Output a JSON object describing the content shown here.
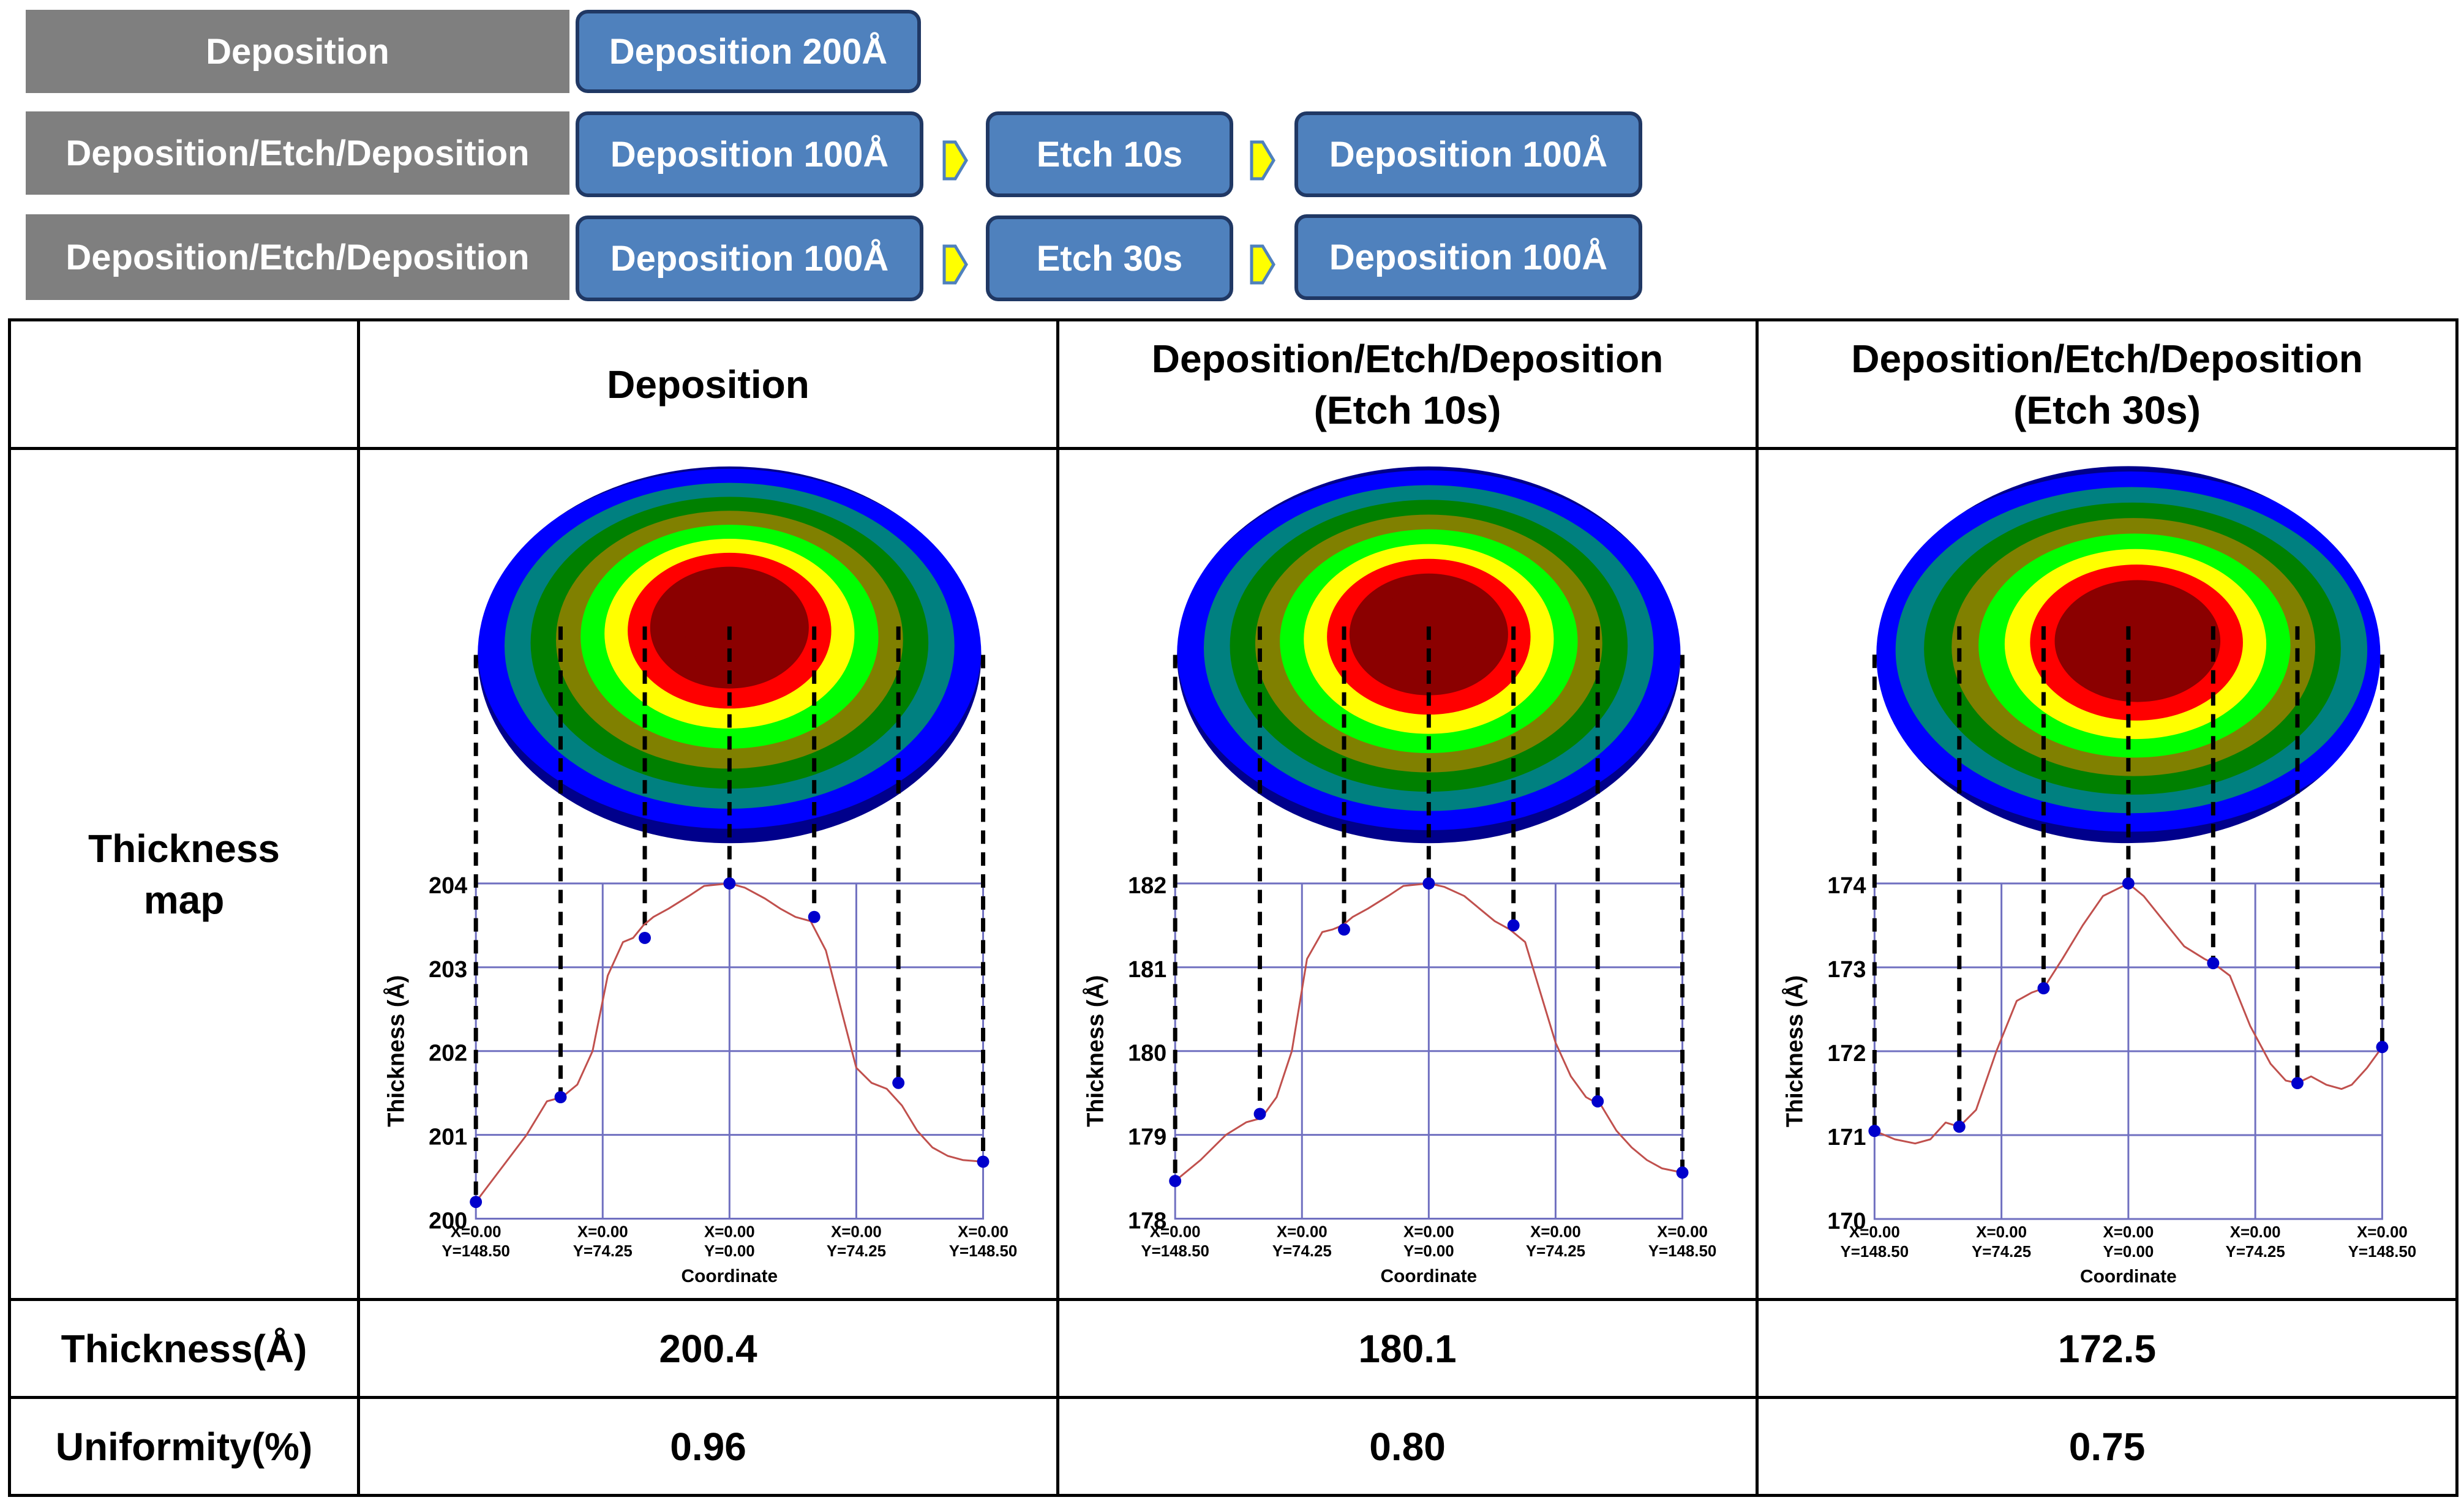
{
  "process": {
    "rows": [
      {
        "label": "Deposition",
        "steps": [
          "Deposition 200Å"
        ]
      },
      {
        "label": "Deposition/Etch/Deposition",
        "steps": [
          "Deposition 100Å",
          "Etch 10s",
          "Deposition 100Å"
        ]
      },
      {
        "label": "Deposition/Etch/Deposition",
        "steps": [
          "Deposition 100Å",
          "Etch 30s",
          "Deposition 100Å"
        ]
      }
    ]
  },
  "table": {
    "headers": [
      {
        "line1": "Deposition",
        "line2": ""
      },
      {
        "line1": "Deposition/Etch/Deposition",
        "line2": "(Etch 10s)"
      },
      {
        "line1": "Deposition/Etch/Deposition",
        "line2": "(Etch 30s)"
      }
    ],
    "map_label_1": "Thickness",
    "map_label_2": "map",
    "thickness_label": "Thickness(Å)",
    "uniformity_label": "Uniformity(%)",
    "thickness_values": [
      "200.4",
      "180.1",
      "172.5"
    ],
    "uniformity_values": [
      "0.96",
      "0.80",
      "0.75"
    ]
  },
  "colors": {
    "process_grey": "#7f7f7f",
    "process_blue": "#4f81bd",
    "process_border": "#203864",
    "arrow_fill": "#ffff00",
    "arrow_border": "#4f81bd",
    "curve": "#c0504d",
    "marker": "#0000cc",
    "grid": "#7070c0",
    "contour_levels": [
      "#4b0082",
      "#800080",
      "#00008b",
      "#0000ff",
      "#008080",
      "#008000",
      "#808000",
      "#00ff00",
      "#ffff00",
      "#ff0000",
      "#8b0000"
    ]
  },
  "chart_data": [
    {
      "type": "line",
      "title": "Deposition",
      "xlabel": "Coordinate",
      "ylabel": "Thickness (Å)",
      "ylim": [
        200,
        204
      ],
      "yticks": [
        "200",
        "201",
        "202",
        "203",
        "204"
      ],
      "xticks": [
        {
          "x": "X=0.00",
          "y": "Y=148.50"
        },
        {
          "x": "X=0.00",
          "y": "Y=74.25"
        },
        {
          "x": "X=0.00",
          "y": "Y=0.00"
        },
        {
          "x": "X=0.00",
          "y": "Y=74.25"
        },
        {
          "x": "X=0.00",
          "y": "Y=148.50"
        }
      ],
      "x": [
        0,
        0.05,
        0.1,
        0.14,
        0.17,
        0.2,
        0.23,
        0.26,
        0.29,
        0.31,
        0.33,
        0.35,
        0.38,
        0.42,
        0.45,
        0.5,
        0.53,
        0.57,
        0.6,
        0.63,
        0.66,
        0.69,
        0.72,
        0.75,
        0.78,
        0.81,
        0.84,
        0.87,
        0.9,
        0.93,
        0.96,
        1.0
      ],
      "values": [
        200.2,
        200.6,
        201.0,
        201.4,
        201.45,
        201.6,
        202.0,
        202.9,
        203.3,
        203.35,
        203.5,
        203.6,
        203.7,
        203.85,
        203.97,
        204.0,
        203.95,
        203.82,
        203.7,
        203.6,
        203.55,
        203.2,
        202.5,
        201.8,
        201.62,
        201.55,
        201.35,
        201.05,
        200.85,
        200.75,
        200.7,
        200.68
      ],
      "markers_x": [
        0,
        0.167,
        0.333,
        0.5,
        0.667,
        0.833,
        1.0
      ],
      "markers_y": [
        200.2,
        201.45,
        203.35,
        204.0,
        203.6,
        201.62,
        200.68
      ],
      "map": {
        "peak_x": 0.5,
        "peak_y": 0.42,
        "rx": 0.24,
        "ry": 0.2,
        "shift": 0.0
      }
    },
    {
      "type": "line",
      "title": "Deposition/Etch/Deposition (Etch 10s)",
      "xlabel": "Coordinate",
      "ylabel": "Thickness (Å)",
      "ylim": [
        178,
        182
      ],
      "yticks": [
        "178",
        "179",
        "180",
        "181",
        "182"
      ],
      "xticks": [
        {
          "x": "X=0.00",
          "y": "Y=148.50"
        },
        {
          "x": "X=0.00",
          "y": "Y=74.25"
        },
        {
          "x": "X=0.00",
          "y": "Y=0.00"
        },
        {
          "x": "X=0.00",
          "y": "Y=74.25"
        },
        {
          "x": "X=0.00",
          "y": "Y=148.50"
        }
      ],
      "x": [
        0,
        0.05,
        0.1,
        0.14,
        0.17,
        0.2,
        0.23,
        0.26,
        0.29,
        0.31,
        0.33,
        0.35,
        0.38,
        0.42,
        0.45,
        0.5,
        0.53,
        0.57,
        0.6,
        0.63,
        0.66,
        0.69,
        0.72,
        0.75,
        0.78,
        0.81,
        0.84,
        0.87,
        0.9,
        0.93,
        0.96,
        1.0
      ],
      "values": [
        178.45,
        178.7,
        179.0,
        179.15,
        179.2,
        179.45,
        180.0,
        181.1,
        181.42,
        181.45,
        181.5,
        181.6,
        181.7,
        181.85,
        181.97,
        182.0,
        181.96,
        181.85,
        181.7,
        181.55,
        181.45,
        181.3,
        180.7,
        180.1,
        179.7,
        179.45,
        179.35,
        179.05,
        178.85,
        178.7,
        178.6,
        178.55
      ],
      "markers_x": [
        0,
        0.167,
        0.333,
        0.5,
        0.667,
        0.833,
        1.0
      ],
      "markers_y": [
        178.45,
        179.25,
        181.45,
        182.0,
        181.5,
        179.4,
        178.55
      ],
      "map": {
        "peak_x": 0.5,
        "peak_y": 0.44,
        "rx": 0.26,
        "ry": 0.2,
        "shift": 0.0
      }
    },
    {
      "type": "line",
      "title": "Deposition/Etch/Deposition (Etch 30s)",
      "xlabel": "Coordinate",
      "ylabel": "Thickness (Å)",
      "ylim": [
        170,
        174
      ],
      "yticks": [
        "170",
        "171",
        "172",
        "173",
        "174"
      ],
      "xticks": [
        {
          "x": "X=0.00",
          "y": "Y=148.50"
        },
        {
          "x": "X=0.00",
          "y": "Y=74.25"
        },
        {
          "x": "X=0.00",
          "y": "Y=0.00"
        },
        {
          "x": "X=0.00",
          "y": "Y=74.25"
        },
        {
          "x": "X=0.00",
          "y": "Y=148.50"
        }
      ],
      "x": [
        0,
        0.04,
        0.08,
        0.11,
        0.14,
        0.167,
        0.2,
        0.24,
        0.28,
        0.31,
        0.333,
        0.37,
        0.41,
        0.45,
        0.5,
        0.53,
        0.57,
        0.61,
        0.65,
        0.667,
        0.7,
        0.74,
        0.78,
        0.81,
        0.833,
        0.86,
        0.89,
        0.92,
        0.94,
        0.97,
        1.0
      ],
      "values": [
        171.05,
        170.95,
        170.9,
        170.95,
        171.15,
        171.1,
        171.3,
        172.0,
        172.6,
        172.7,
        172.75,
        173.1,
        173.5,
        173.85,
        174.0,
        173.85,
        173.55,
        173.25,
        173.1,
        173.05,
        172.9,
        172.3,
        171.85,
        171.65,
        171.62,
        171.7,
        171.6,
        171.55,
        171.6,
        171.8,
        172.05
      ],
      "markers_x": [
        0,
        0.167,
        0.333,
        0.5,
        0.667,
        0.833,
        1.0
      ],
      "markers_y": [
        171.05,
        171.1,
        172.75,
        174.0,
        173.05,
        171.62,
        172.05
      ],
      "map": {
        "peak_x": 0.52,
        "peak_y": 0.46,
        "rx": 0.2,
        "ry": 0.17,
        "shift": 0.05
      }
    }
  ]
}
